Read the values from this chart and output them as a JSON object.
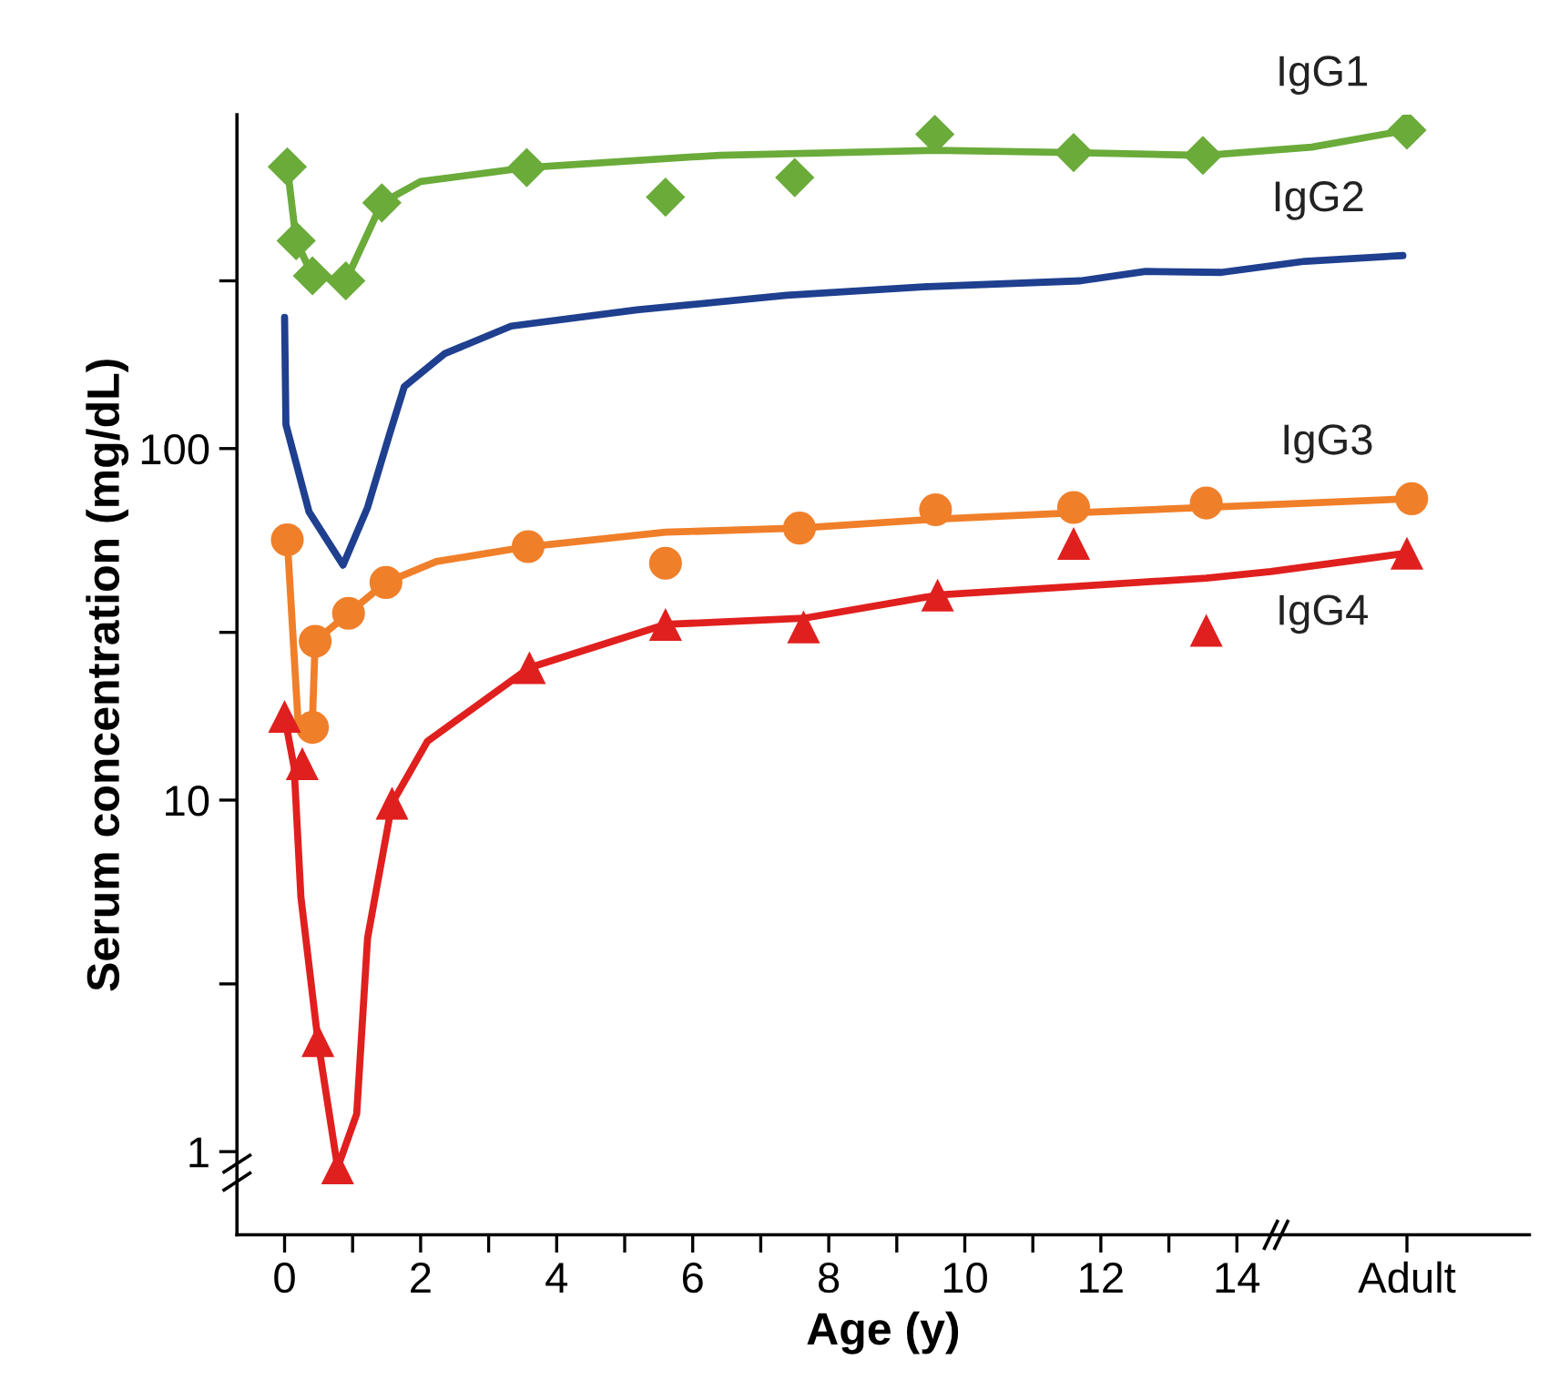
{
  "chart_data": {
    "type": "line",
    "xlabel": "Age (y)",
    "ylabel": "Serum concentration (mg/dL)",
    "log": "y",
    "grid": false,
    "legend": false,
    "xlim": [
      -0.7,
      18.3
    ],
    "ylim": [
      0.58,
      890
    ],
    "xticks": [
      0,
      {
        "value": 1,
        "label": null
      },
      2,
      {
        "value": 3,
        "label": null
      },
      4,
      {
        "value": 5,
        "label": null
      },
      6,
      {
        "value": 7,
        "label": null
      },
      8,
      {
        "value": 9,
        "label": null
      },
      10,
      {
        "value": 11,
        "label": null
      },
      12,
      {
        "value": 13,
        "label": null
      },
      14,
      {
        "value": 16.5,
        "label": "Adult"
      }
    ],
    "yticks": [
      1,
      {
        "value": 3,
        "label": null
      },
      10,
      {
        "value": 30,
        "label": null
      },
      100,
      {
        "value": 300,
        "label": null
      }
    ],
    "series": [
      {
        "type": "scatter",
        "color": "#6aab3a",
        "marker": "diamond",
        "x": [
          0.04,
          0.17,
          0.41,
          0.9,
          1.43,
          3.56,
          5.6,
          7.5,
          9.56,
          11.6,
          13.5,
          16.5
        ],
        "values": [
          633,
          390,
          310,
          300,
          500,
          630,
          519,
          590,
          783,
          695,
          682,
          805
        ]
      },
      {
        "name": "IgG1",
        "color": "#6aab3a",
        "marker": "none",
        "line_style": "solid",
        "x": [
          0.04,
          0.17,
          0.41,
          0.9,
          1.43,
          2,
          3.56,
          6.4,
          9.56,
          11.6,
          13.5,
          15.1,
          16.5
        ],
        "values": [
          633,
          390,
          310,
          300,
          500,
          575,
          630,
          683,
          705,
          695,
          682,
          720,
          805
        ]
      },
      {
        "name": "IgG2",
        "color": "#1f3f8f",
        "marker": "none",
        "line_style": "solid",
        "x": [
          0,
          0.02,
          0.36,
          0.86,
          1.22,
          1.55,
          1.76,
          2.35,
          3.33,
          5.18,
          7.38,
          9.47,
          11.7,
          12.66,
          13.77,
          15.0,
          16.44
        ],
        "values": [
          236,
          117,
          66,
          46.6,
          68,
          111,
          150,
          186,
          223,
          248,
          273,
          289,
          300,
          319,
          317,
          341,
          354
        ]
      },
      {
        "type": "scatter",
        "color": "#f07f2a",
        "marker": "circle",
        "x": [
          0.04,
          0.41,
          0.45,
          0.94,
          1.49,
          3.58,
          5.6,
          7.57,
          9.57,
          11.6,
          13.55,
          16.57
        ],
        "values": [
          55,
          16.1,
          28.3,
          34,
          41.6,
          52.6,
          47.2,
          59.4,
          67,
          68,
          70,
          72
        ]
      },
      {
        "name": "IgG3",
        "color": "#f07f2a",
        "marker": "none",
        "line_style": "solid",
        "x": [
          0.04,
          0.2,
          0.41,
          0.45,
          0.94,
          1.49,
          2.23,
          3.58,
          5.6,
          7.57,
          9.57,
          11.6,
          13.55,
          16.57
        ],
        "values": [
          55,
          16.5,
          17,
          28.3,
          34,
          41.6,
          47.7,
          52.6,
          57.8,
          59.4,
          63,
          65.6,
          68,
          72
        ]
      },
      {
        "type": "scatter",
        "color": "#e0201e",
        "marker": "triangle",
        "x": [
          0,
          0.26,
          0.49,
          0.78,
          1.58,
          3.6,
          5.6,
          7.63,
          9.6,
          11.6,
          13.55,
          16.5
        ],
        "values": [
          17.3,
          12.7,
          2.07,
          0.9,
          9.8,
          23.8,
          31.6,
          31.1,
          38.3,
          53.7,
          30.4,
          50.4
        ]
      },
      {
        "name": "IgG4",
        "color": "#e0201e",
        "marker": "none",
        "line_style": "solid",
        "x": [
          0,
          0.14,
          0.24,
          0.49,
          0.78,
          1.06,
          1.22,
          1.58,
          2.1,
          3.6,
          5.6,
          7.63,
          9.6,
          11.6,
          13.55,
          14.5,
          16.5
        ],
        "values": [
          17.3,
          12.4,
          5.3,
          2.07,
          0.9,
          1.28,
          4.05,
          9.8,
          14.7,
          23.8,
          31.6,
          32.9,
          38.3,
          40.5,
          42.8,
          44.7,
          50.4
        ]
      }
    ]
  }
}
